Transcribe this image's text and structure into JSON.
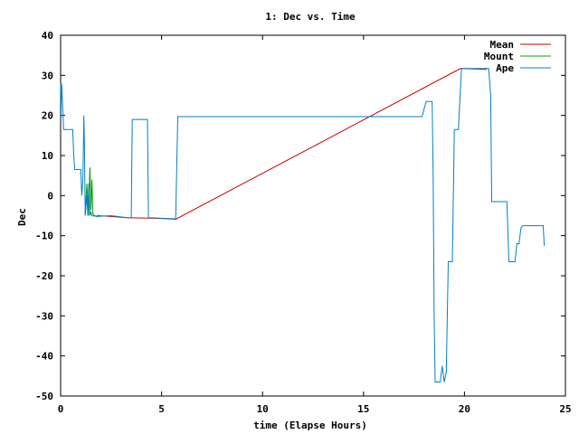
{
  "chart_data": {
    "type": "line",
    "title": "1: Dec vs. Time",
    "xlabel": "time (Elapse Hours)",
    "ylabel": "Dec",
    "xlim": [
      0,
      25
    ],
    "ylim": [
      -50,
      40
    ],
    "xticks": [
      0,
      5,
      10,
      15,
      20,
      25
    ],
    "yticks": [
      -50,
      -40,
      -30,
      -20,
      -10,
      0,
      10,
      20,
      30,
      40
    ],
    "xtick_labels": [
      "0",
      "5",
      "10",
      "15",
      "20",
      "25"
    ],
    "ytick_labels": [
      "-50",
      "-40",
      "-30",
      "-20",
      "-10",
      "0",
      "10",
      "20",
      "30",
      "40"
    ],
    "grid": false,
    "legend_position": "top-right",
    "series": [
      {
        "name": "Mean",
        "color": "#cc0000",
        "points": [
          [
            1.8,
            -5.0
          ],
          [
            2.5,
            -5.2
          ],
          [
            3.3,
            -5.5
          ],
          [
            4.4,
            -5.6
          ],
          [
            5.0,
            -5.7
          ],
          [
            5.7,
            -5.9
          ],
          [
            19.8,
            31.7
          ],
          [
            20.5,
            31.6
          ],
          [
            21.1,
            31.5
          ]
        ]
      },
      {
        "name": "Mount",
        "color": "#00a000",
        "points": [
          [
            1.22,
            -4.8
          ],
          [
            1.3,
            3.0
          ],
          [
            1.38,
            -5.0
          ],
          [
            1.45,
            7.0
          ],
          [
            1.5,
            -3.5
          ],
          [
            1.55,
            4.0
          ],
          [
            1.6,
            -4.5
          ],
          [
            1.68,
            -5.0
          ],
          [
            1.8,
            -5.2
          ]
        ]
      },
      {
        "name": "Ape",
        "color": "#0080c8",
        "points": [
          [
            0.0,
            28.0
          ],
          [
            0.02,
            20.0
          ],
          [
            0.05,
            28.0
          ],
          [
            0.12,
            20.0
          ],
          [
            0.15,
            16.5
          ],
          [
            0.6,
            16.5
          ],
          [
            0.65,
            10.0
          ],
          [
            0.7,
            6.5
          ],
          [
            1.0,
            6.5
          ],
          [
            1.05,
            0.0
          ],
          [
            1.1,
            4.0
          ],
          [
            1.15,
            20.0
          ],
          [
            1.18,
            13.0
          ],
          [
            1.22,
            -5.0
          ],
          [
            1.3,
            0.0
          ],
          [
            1.35,
            -5.0
          ],
          [
            1.4,
            3.0
          ],
          [
            1.45,
            -5.0
          ],
          [
            1.5,
            -4.0
          ],
          [
            1.55,
            -5.0
          ],
          [
            1.8,
            -5.2
          ],
          [
            2.5,
            -5.0
          ],
          [
            3.3,
            -5.5
          ],
          [
            3.5,
            -5.5
          ],
          [
            3.55,
            19.0
          ],
          [
            4.3,
            19.0
          ],
          [
            4.35,
            -5.5
          ],
          [
            5.7,
            -5.8
          ],
          [
            5.8,
            19.7
          ],
          [
            17.9,
            19.7
          ],
          [
            18.1,
            23.5
          ],
          [
            18.4,
            23.5
          ],
          [
            18.45,
            5.0
          ],
          [
            18.5,
            -30.0
          ],
          [
            18.55,
            -46.5
          ],
          [
            18.8,
            -46.5
          ],
          [
            18.9,
            -42.5
          ],
          [
            19.0,
            -46.5
          ],
          [
            19.1,
            -44.0
          ],
          [
            19.2,
            -16.5
          ],
          [
            19.4,
            -16.5
          ],
          [
            19.5,
            16.5
          ],
          [
            19.7,
            16.5
          ],
          [
            19.85,
            31.7
          ],
          [
            21.2,
            31.7
          ],
          [
            21.3,
            25.0
          ],
          [
            21.35,
            -1.5
          ],
          [
            22.1,
            -1.5
          ],
          [
            22.2,
            -16.5
          ],
          [
            22.5,
            -16.5
          ],
          [
            22.6,
            -12.0
          ],
          [
            22.7,
            -12.0
          ],
          [
            22.8,
            -8.0
          ],
          [
            22.9,
            -7.5
          ],
          [
            23.9,
            -7.5
          ],
          [
            23.95,
            -12.5
          ]
        ]
      }
    ]
  }
}
